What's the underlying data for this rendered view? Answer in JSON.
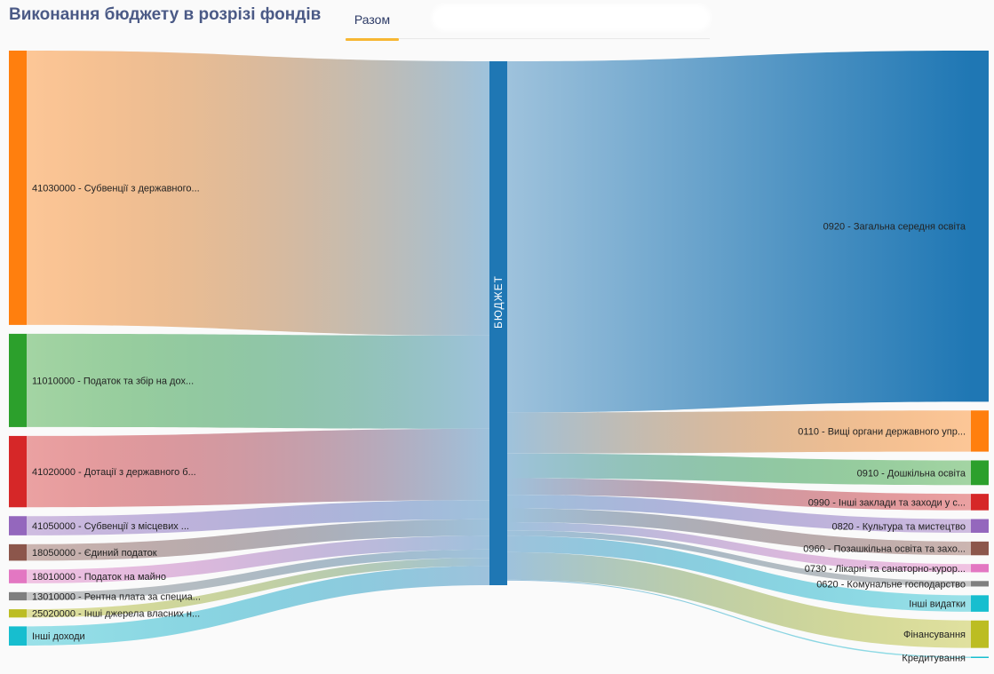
{
  "header": {
    "title": "Виконання бюджету в розрізі фондів",
    "tab_label": "Разом"
  },
  "chart_data": {
    "type": "sankey",
    "title": "Виконання бюджету в розрізі фондів",
    "center_node": "БЮДЖЕТ",
    "center_color": "#1f77b4",
    "sources": [
      {
        "label": "41030000 - Субвенції з державного...",
        "value": 100,
        "color": "#ff7f0e"
      },
      {
        "label": "11010000 - Податок та збір на дох...",
        "value": 34,
        "color": "#2ca02c"
      },
      {
        "label": "41020000 - Дотації з державного б...",
        "value": 26,
        "color": "#d62728"
      },
      {
        "label": "41050000 - Субвенції з місцевих ...",
        "value": 7,
        "color": "#9467bd"
      },
      {
        "label": "18050000 - Єдиний податок",
        "value": 6,
        "color": "#8c564b"
      },
      {
        "label": "18010000 - Податок на майно",
        "value": 5,
        "color": "#e377c2"
      },
      {
        "label": "13010000 - Рентна плата за специа...",
        "value": 3,
        "color": "#7f7f7f"
      },
      {
        "label": "25020000 - Інші джерела власних н...",
        "value": 3,
        "color": "#bcbd22"
      },
      {
        "label": "Інші доходи",
        "value": 7,
        "color": "#17becf"
      }
    ],
    "targets": [
      {
        "label": "0920 - Загальна середня освіта",
        "value": 128,
        "color": "#1f77b4"
      },
      {
        "label": "0110 - Вищі органи державного упр...",
        "value": 15,
        "color": "#ff7f0e"
      },
      {
        "label": "0910 - Дошкільна освіта",
        "value": 9,
        "color": "#2ca02c"
      },
      {
        "label": "0990 - Інші заклади та заходи у с...",
        "value": 6,
        "color": "#d62728"
      },
      {
        "label": "0820 - Культура та мистецтво",
        "value": 5,
        "color": "#9467bd"
      },
      {
        "label": "0960 - Позашкільна освіта та захо...",
        "value": 5,
        "color": "#8c564b"
      },
      {
        "label": "0730 - Лікарні та санаторно-курор...",
        "value": 3,
        "color": "#e377c2"
      },
      {
        "label": "0620 - Комунальне господарство",
        "value": 2,
        "color": "#7f7f7f"
      },
      {
        "label": "Інші видатки",
        "value": 6,
        "color": "#17becf"
      },
      {
        "label": "Фінансування",
        "value": 10,
        "color": "#bcbd22"
      },
      {
        "label": "Кредитування",
        "value": 0.3,
        "color": "#17becf"
      }
    ]
  }
}
